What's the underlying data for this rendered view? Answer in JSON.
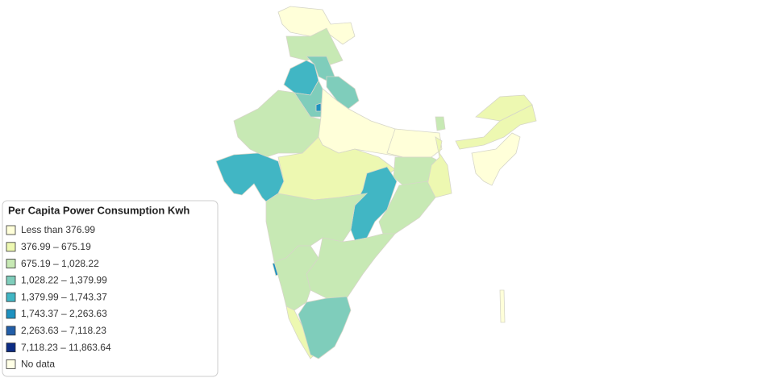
{
  "legend": {
    "title": "Per Capita Power Consumption Kwh",
    "items": [
      {
        "label": "Less than 376.99",
        "color": "#ffffd9"
      },
      {
        "label": "376.99 – 675.19",
        "color": "#edf8b1"
      },
      {
        "label": "675.19 – 1,028.22",
        "color": "#c7e9b4"
      },
      {
        "label": "1,028.22 – 1,379.99",
        "color": "#7fcdbb"
      },
      {
        "label": "1,379.99 – 1,743.37",
        "color": "#41b6c4"
      },
      {
        "label": "1,743.37 – 2,263.63",
        "color": "#1d91c0"
      },
      {
        "label": "2,263.63 – 7,118.23",
        "color": "#225ea8"
      },
      {
        "label": "7,118.23 – 11,863.64",
        "color": "#0c2c84"
      },
      {
        "label": "No data",
        "color": "#ffffe6"
      }
    ]
  }
}
